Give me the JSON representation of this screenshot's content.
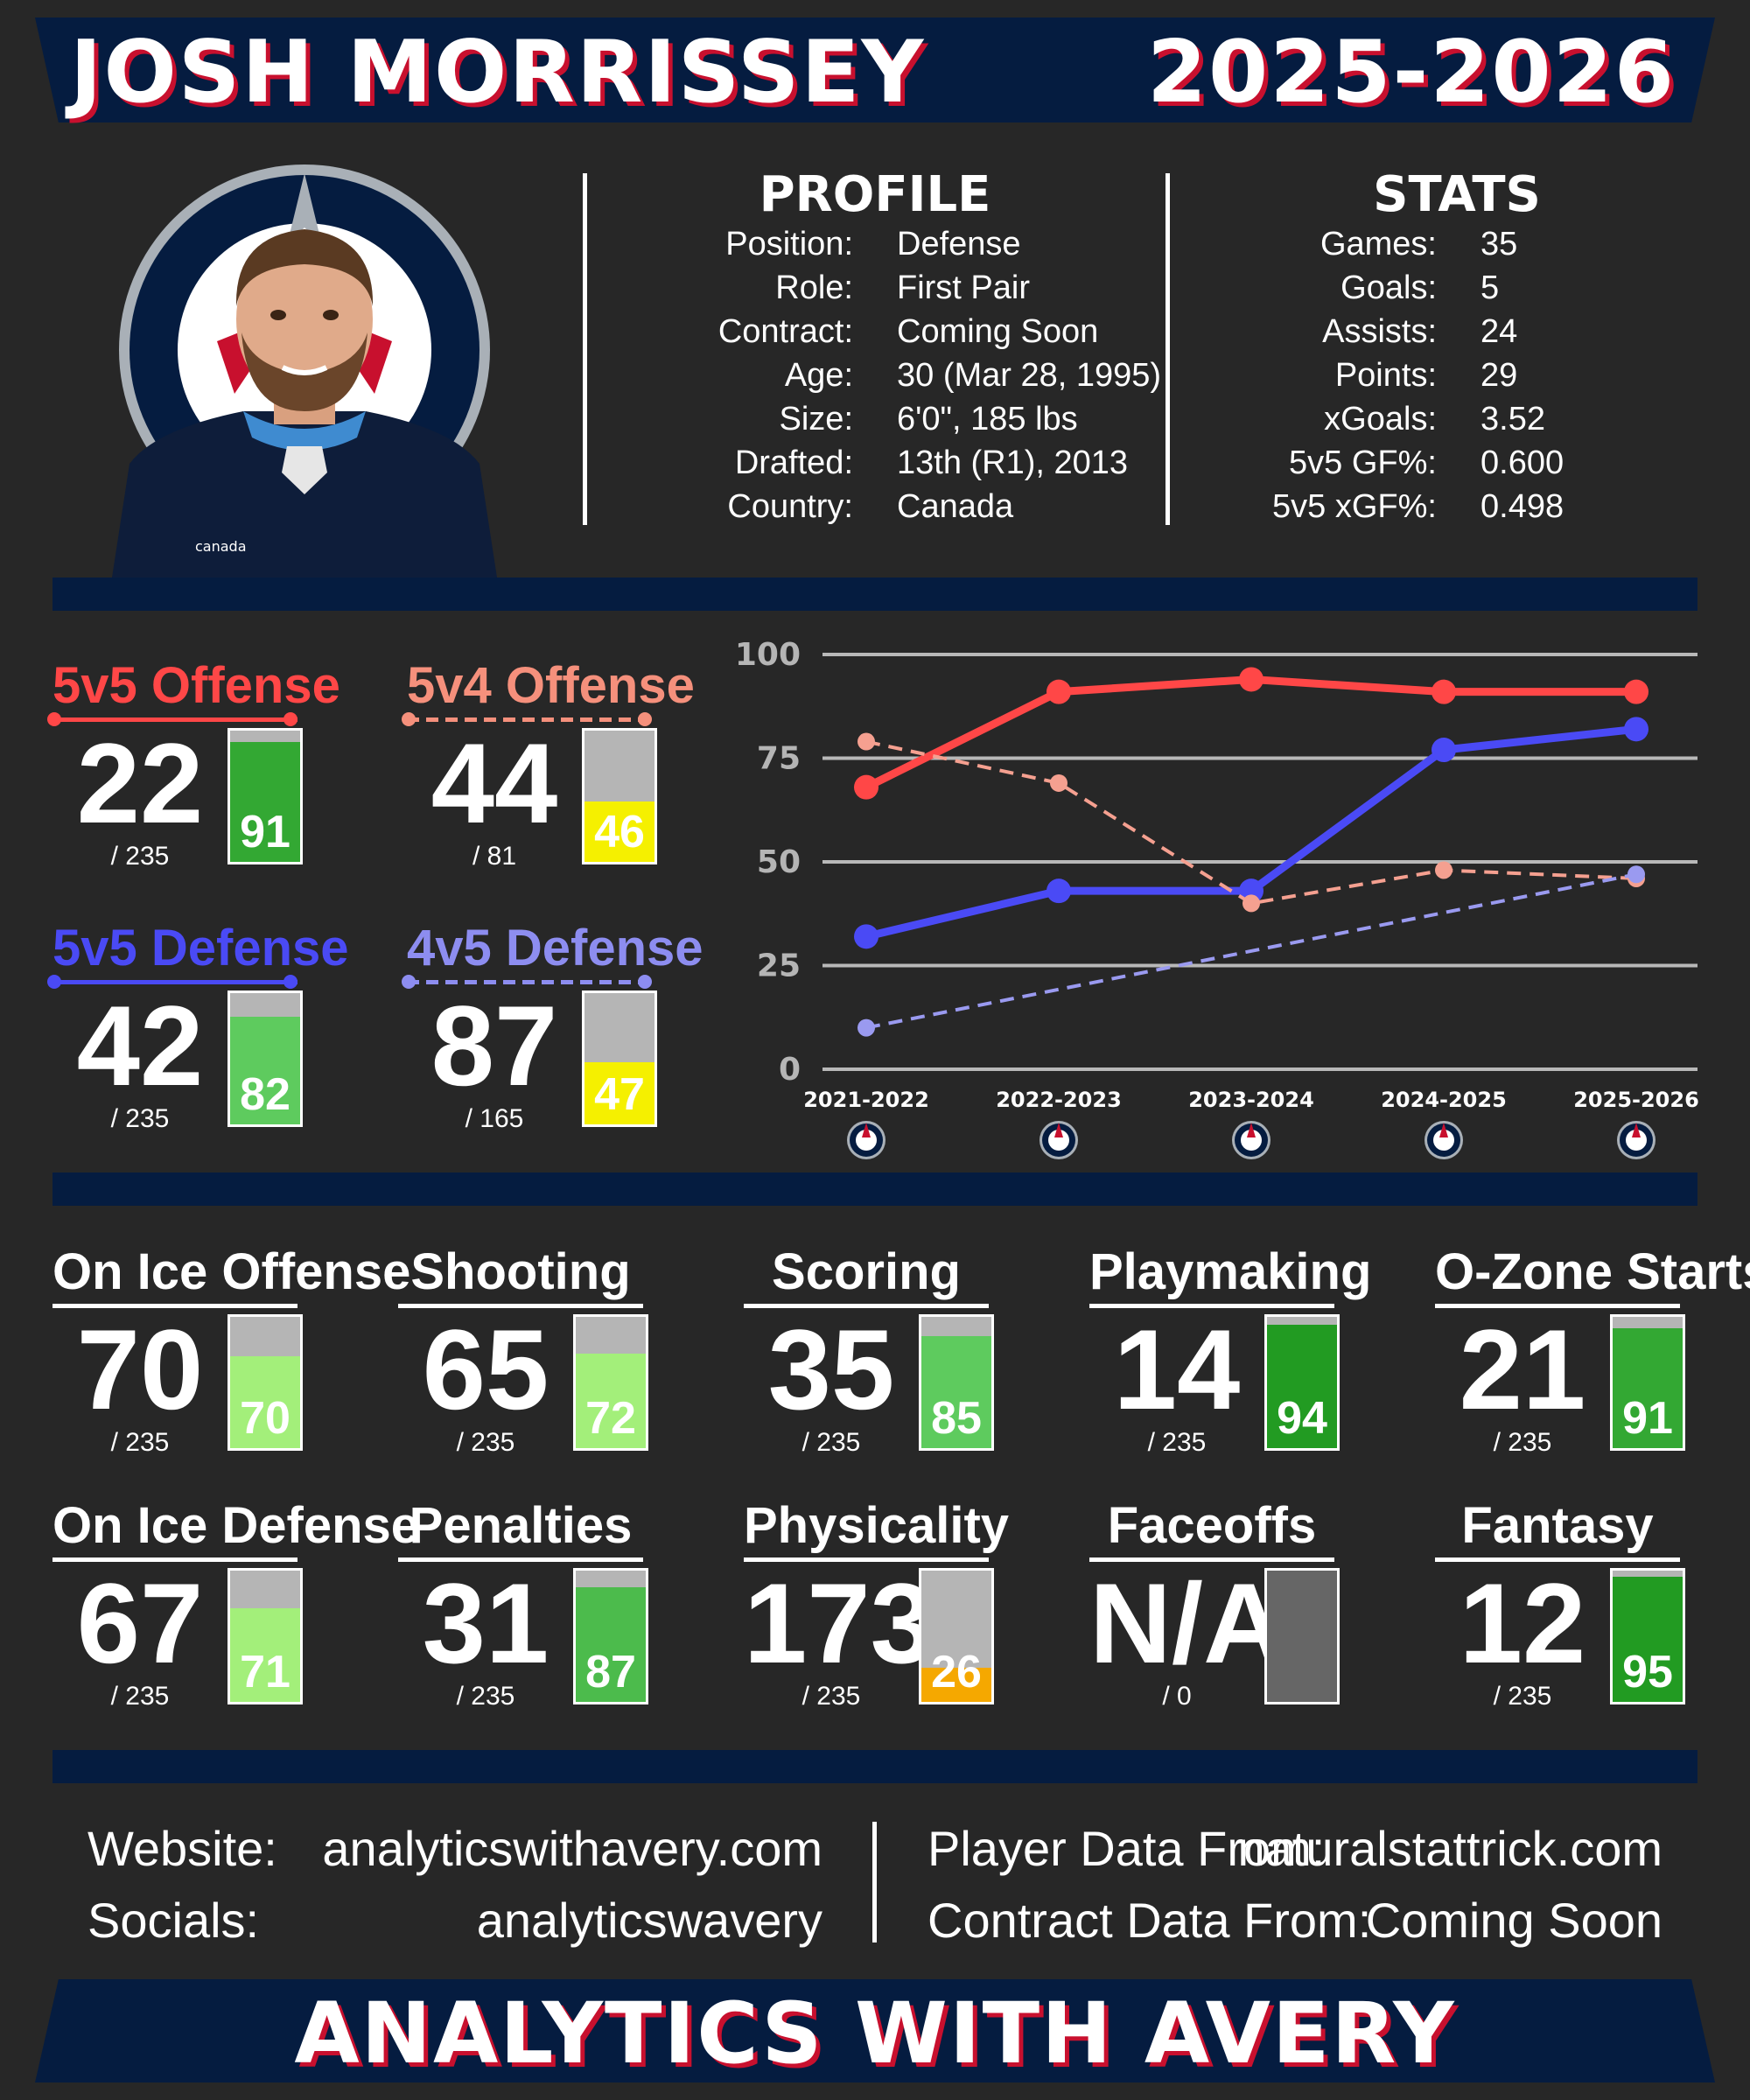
{
  "header": {
    "player_name": "JOSH MORRISSEY",
    "season": "2025-2026"
  },
  "profile": {
    "title": "PROFILE",
    "rows": [
      {
        "label": "Position:",
        "value": "Defense"
      },
      {
        "label": "Role:",
        "value": "First Pair"
      },
      {
        "label": "Contract:",
        "value": "Coming Soon"
      },
      {
        "label": "Age:",
        "value": "30 (Mar 28, 1995)"
      },
      {
        "label": "Size:",
        "value": "6'0\", 185 lbs"
      },
      {
        "label": "Drafted:",
        "value": "13th (R1), 2013"
      },
      {
        "label": "Country:",
        "value": "Canada"
      }
    ]
  },
  "stats": {
    "title": "STATS",
    "rows": [
      {
        "label": "Games:",
        "value": "35"
      },
      {
        "label": "Goals:",
        "value": "5"
      },
      {
        "label": "Assists:",
        "value": "24"
      },
      {
        "label": "Points:",
        "value": "29"
      },
      {
        "label": "xGoals:",
        "value": "3.52"
      },
      {
        "label": "5v5 GF%:",
        "value": "0.600"
      },
      {
        "label": "5v5 xGF%:",
        "value": "0.498"
      }
    ]
  },
  "jersey_text": "canada",
  "special_teams": [
    {
      "title": "5v5 Offense",
      "rank": "22",
      "of": "/ 235",
      "percentile": 91,
      "pct_label": "91",
      "color": "#ff4747",
      "dashed": false,
      "fill": "#33a833"
    },
    {
      "title": "5v4 Offense",
      "rank": "44",
      "of": "/ 81",
      "percentile": 46,
      "pct_label": "46",
      "color": "#f5907c",
      "dashed": true,
      "fill": "#f5f000"
    },
    {
      "title": "5v5 Defense",
      "rank": "42",
      "of": "/ 235",
      "percentile": 82,
      "pct_label": "82",
      "color": "#4a4af5",
      "dashed": false,
      "fill": "#5ecb5e"
    },
    {
      "title": "4v5 Defense",
      "rank": "87",
      "of": "/ 165",
      "percentile": 47,
      "pct_label": "47",
      "color": "#8d8df0",
      "dashed": true,
      "fill": "#f5f000"
    }
  ],
  "chart_data": {
    "type": "line",
    "categories": [
      "2021-2022",
      "2022-2023",
      "2023-2024",
      "2024-2025",
      "2025-2026"
    ],
    "ylim": [
      0,
      100
    ],
    "yticks": [
      "0",
      "25",
      "50",
      "75",
      "100"
    ],
    "grid": true,
    "series": [
      {
        "name": "5v5 Offense",
        "values": [
          68,
          91,
          94,
          91,
          91
        ],
        "color": "#ff4747",
        "dashed": false
      },
      {
        "name": "5v5 Defense",
        "values": [
          32,
          43,
          43,
          77,
          82
        ],
        "color": "#4a4af5",
        "dashed": false
      },
      {
        "name": "5v4 Offense",
        "values": [
          79,
          69,
          40,
          48,
          46
        ],
        "color": "#f5a090",
        "dashed": true
      },
      {
        "name": "4v5 Defense",
        "values": [
          10,
          null,
          null,
          null,
          47
        ],
        "color": "#9a9af0",
        "dashed": true
      }
    ]
  },
  "metrics": [
    {
      "title": "On Ice Offense",
      "rank": "70",
      "of": "/ 235",
      "percentile": 70,
      "pct_label": "70",
      "fill": "#a3ef7a"
    },
    {
      "title": "Shooting",
      "rank": "65",
      "of": "/ 235",
      "percentile": 72,
      "pct_label": "72",
      "fill": "#a3ef7a"
    },
    {
      "title": "Scoring",
      "rank": "35",
      "of": "/ 235",
      "percentile": 85,
      "pct_label": "85",
      "fill": "#5ecb5e"
    },
    {
      "title": "Playmaking",
      "rank": "14",
      "of": "/ 235",
      "percentile": 94,
      "pct_label": "94",
      "fill": "#229b22"
    },
    {
      "title": "O-Zone Starts",
      "rank": "21",
      "of": "/ 235",
      "percentile": 91,
      "pct_label": "91",
      "fill": "#33a833"
    },
    {
      "title": "On Ice Defense",
      "rank": "67",
      "of": "/ 235",
      "percentile": 71,
      "pct_label": "71",
      "fill": "#a3ef7a"
    },
    {
      "title": "Penalties",
      "rank": "31",
      "of": "/ 235",
      "percentile": 87,
      "pct_label": "87",
      "fill": "#4cbb4c"
    },
    {
      "title": "Physicality",
      "rank": "173",
      "of": "/ 235",
      "percentile": 26,
      "pct_label": "26",
      "fill": "#f5a800"
    },
    {
      "title": "Faceoffs",
      "rank": "N/A",
      "of": "/ 0",
      "percentile": null,
      "pct_label": "",
      "fill": "#666666"
    },
    {
      "title": "Fantasy",
      "rank": "12",
      "of": "/ 235",
      "percentile": 95,
      "pct_label": "95",
      "fill": "#229b22"
    }
  ],
  "footer": {
    "website_label": "Website:",
    "website_value": "analyticswithavery.com",
    "socials_label": "Socials:",
    "socials_value": "analyticswavery",
    "player_data_label": "Player Data From:",
    "player_data_value": "naturalstattrick.com",
    "contract_data_label": "Contract Data From:",
    "contract_data_value": "Coming Soon",
    "brand": "ANALYTICS WITH AVERY"
  },
  "colors": {
    "navy": "#051c40",
    "red": "#c8102e",
    "background": "#272727",
    "bar_empty": "#b5b5b5"
  }
}
